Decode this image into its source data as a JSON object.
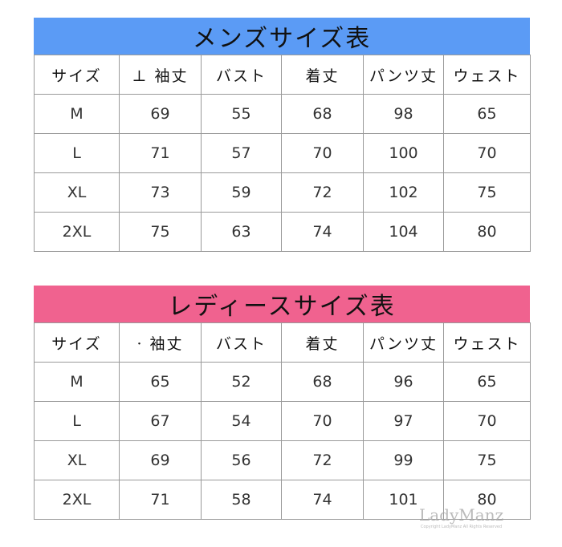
{
  "colors": {
    "mens_bar": "#5b9bf5",
    "ladies_bar": "#f0628f"
  },
  "mens": {
    "title": "メンズサイズ表",
    "headers": [
      "サイズ",
      "⊥ 袖丈",
      "バスト",
      "着丈",
      "パンツ丈",
      "ウェスト"
    ],
    "rows": [
      [
        "M",
        "69",
        "55",
        "68",
        "98",
        "65"
      ],
      [
        "L",
        "71",
        "57",
        "70",
        "100",
        "70"
      ],
      [
        "XL",
        "73",
        "59",
        "72",
        "102",
        "75"
      ],
      [
        "2XL",
        "75",
        "63",
        "74",
        "104",
        "80"
      ]
    ]
  },
  "ladies": {
    "title": "レディースサイズ表",
    "headers": [
      "サイズ",
      "· 袖丈",
      "バスト",
      "着丈",
      "パンツ丈",
      "ウェスト"
    ],
    "rows": [
      [
        "M",
        "65",
        "52",
        "68",
        "96",
        "65"
      ],
      [
        "L",
        "67",
        "54",
        "70",
        "97",
        "70"
      ],
      [
        "XL",
        "69",
        "56",
        "72",
        "99",
        "75"
      ],
      [
        "2XL",
        "71",
        "58",
        "74",
        "101",
        "80"
      ]
    ]
  },
  "watermark": {
    "name": "LadyManz",
    "sub": "Copyright LadyManz All Rights Reserved"
  }
}
